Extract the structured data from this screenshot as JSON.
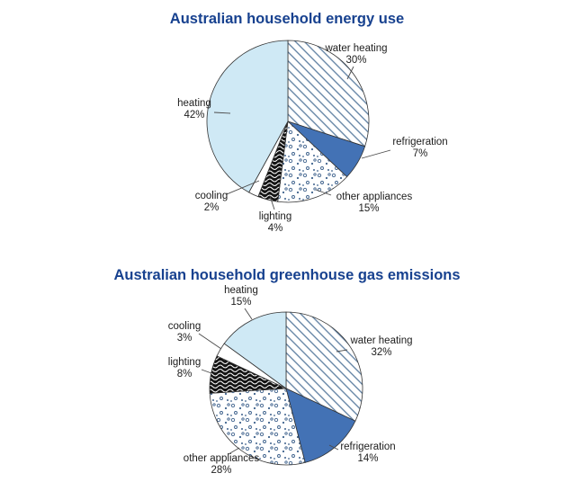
{
  "page": {
    "background": "#ffffff"
  },
  "palette": {
    "title_color": "#17418f",
    "solid_blue": "#4372b5",
    "light_blue": "#cfe9f5",
    "hatch_line": "#5b7da0",
    "dot_color": "#3d618c",
    "squiggle_bg": "#141414",
    "squiggle_fg": "#ffffff",
    "white": "#ffffff",
    "outline": "#333333"
  },
  "chart_data": [
    {
      "type": "pie",
      "title": "Australian household energy use",
      "unit": "%",
      "start_angle": "12 o'clock",
      "direction": "clockwise",
      "legend": "none, outside labels with leader lines",
      "slices": [
        {
          "label": "water heating",
          "value": 30,
          "pct": "30%",
          "fill": "diagonal-hatch"
        },
        {
          "label": "refrigeration",
          "value": 7,
          "pct": "7%",
          "fill": "solid-blue"
        },
        {
          "label": "other appliances",
          "value": 15,
          "pct": "15%",
          "fill": "speckled-dots"
        },
        {
          "label": "lighting",
          "value": 4,
          "pct": "4%",
          "fill": "black-squiggle"
        },
        {
          "label": "cooling",
          "value": 2,
          "pct": "2%",
          "fill": "white"
        },
        {
          "label": "heating",
          "value": 42,
          "pct": "42%",
          "fill": "light-blue"
        }
      ]
    },
    {
      "type": "pie",
      "title": "Australian household greenhouse gas emissions",
      "unit": "%",
      "start_angle": "12 o'clock",
      "direction": "clockwise",
      "legend": "none, outside labels with leader lines",
      "slices": [
        {
          "label": "water heating",
          "value": 32,
          "pct": "32%",
          "fill": "diagonal-hatch"
        },
        {
          "label": "refrigeration",
          "value": 14,
          "pct": "14%",
          "fill": "solid-blue"
        },
        {
          "label": "other appliances",
          "value": 28,
          "pct": "28%",
          "fill": "speckled-dots"
        },
        {
          "label": "lighting",
          "value": 8,
          "pct": "8%",
          "fill": "black-squiggle"
        },
        {
          "label": "cooling",
          "value": 3,
          "pct": "3%",
          "fill": "white"
        },
        {
          "label": "heating",
          "value": 15,
          "pct": "15%",
          "fill": "light-blue"
        }
      ]
    }
  ]
}
